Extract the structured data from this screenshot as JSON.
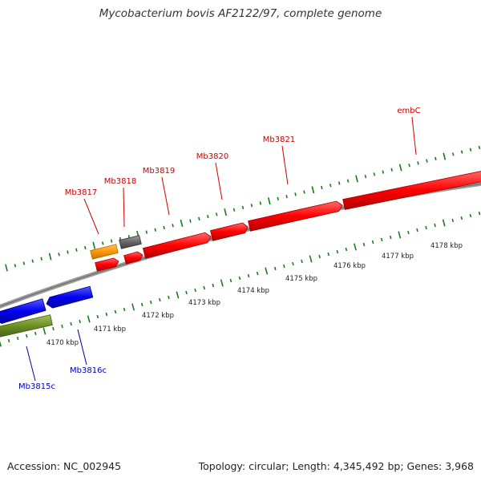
{
  "title": "Mycobacterium bovis AF2122/97, complete genome",
  "footer": {
    "accession": "Accession: NC_002945",
    "summary": "Topology: circular; Length: 4,345,492 bp; Genes: 3,968"
  },
  "colors": {
    "forward_gene": "#ff0000",
    "forward_label": "#cc0000",
    "reverse_gene": "#0000ee",
    "reverse_label": "#0000aa",
    "other_gene_orange": "#ff9900",
    "other_gene_gray": "#666666",
    "other_gene_olive": "#6b8e23",
    "backbone": "#999999",
    "tick": "#1a7a1a"
  },
  "ruler_labels": [
    "4170 kbp",
    "4171 kbp",
    "4172 kbp",
    "4173 kbp",
    "4174 kbp",
    "4175 kbp",
    "4176 kbp",
    "4177 kbp",
    "4178 kbp"
  ],
  "forward_labels": [
    "Mb3817",
    "Mb3818",
    "Mb3819",
    "Mb3820",
    "Mb3821",
    "embC"
  ],
  "reverse_labels": [
    "Mb3815c",
    "Mb3816c"
  ]
}
